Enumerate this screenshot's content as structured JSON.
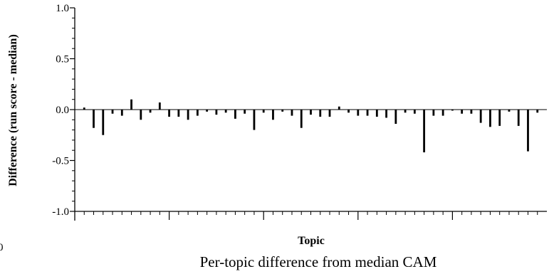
{
  "chart_data": {
    "type": "bar",
    "caption": "Per-topic difference from median CAM",
    "xlabel": "Topic",
    "ylabel": "Difference (run score - median)",
    "ylim": [
      -1.0,
      1.0
    ],
    "yticks": [
      "1.0",
      "0.5",
      "0.0",
      "-0.5",
      "-1.0"
    ],
    "ytick_values": [
      1.0,
      0.5,
      0.0,
      -0.5,
      -1.0
    ],
    "margin_label": "0",
    "grid": false,
    "series": [
      {
        "values": [
          0.02,
          -0.18,
          -0.25,
          -0.04,
          -0.06,
          0.1,
          -0.1,
          -0.03,
          0.07,
          -0.07,
          -0.07,
          -0.1,
          -0.06,
          -0.02,
          -0.05,
          -0.03,
          -0.09,
          -0.04,
          -0.2,
          -0.03,
          -0.1,
          -0.02,
          -0.06,
          -0.18,
          -0.05,
          -0.07,
          -0.07,
          0.03,
          -0.03,
          -0.06,
          -0.06,
          -0.07,
          -0.08,
          -0.14,
          -0.03,
          -0.04,
          -0.42,
          -0.06,
          -0.06,
          -0.01,
          -0.04,
          -0.04,
          -0.13,
          -0.17,
          -0.16,
          -0.02,
          -0.16,
          -0.41,
          -0.03
        ]
      }
    ]
  }
}
